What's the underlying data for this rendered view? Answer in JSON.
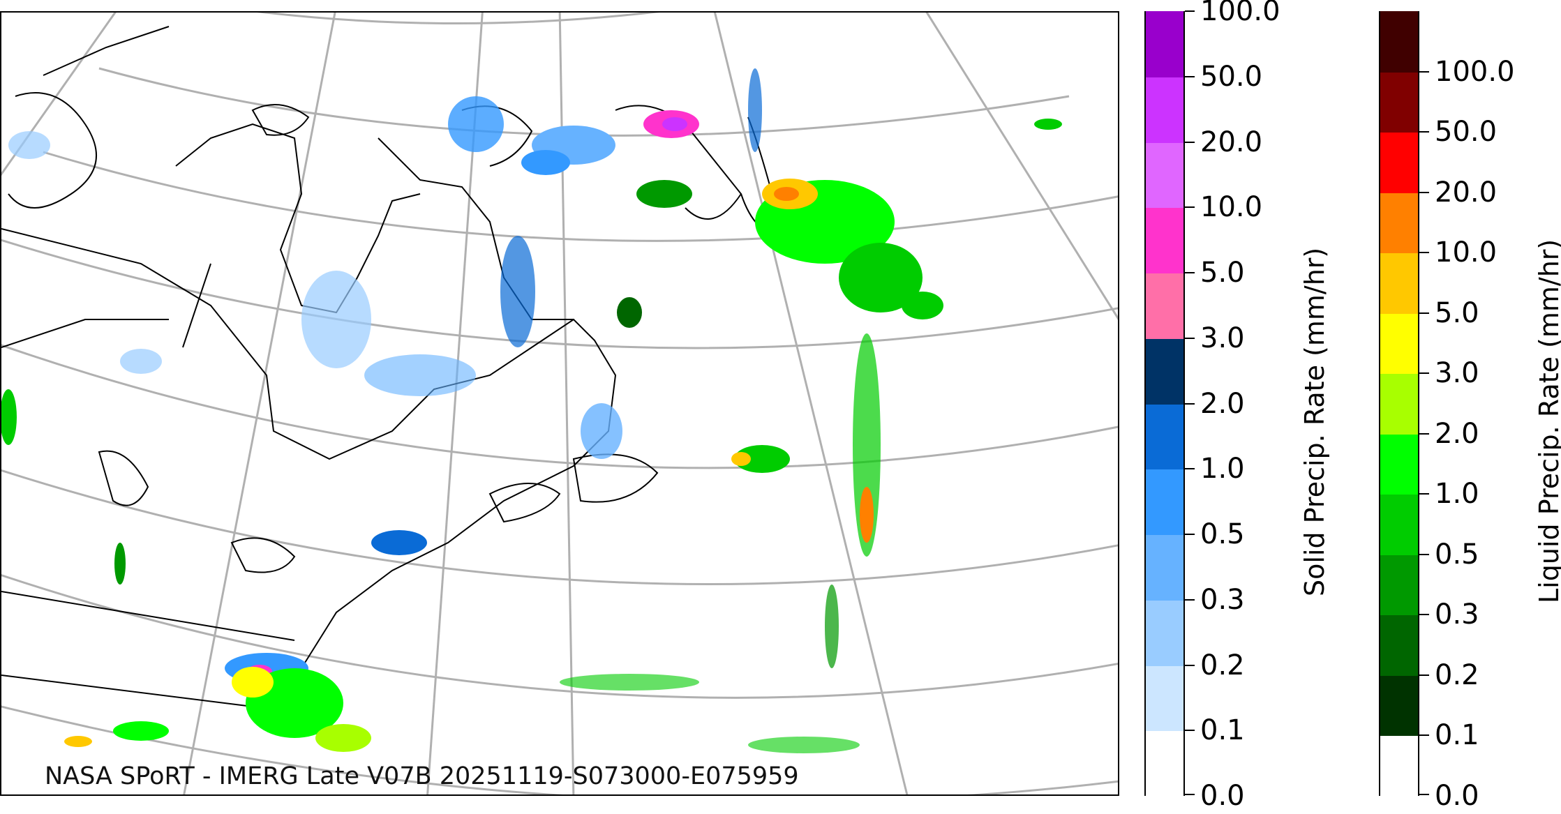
{
  "map": {
    "credit": "NASA SPoRT - IMERG Late V07B 20251119-S073000-E075959",
    "coastline_color": "#000000",
    "graticule_color": "#b0b0b0"
  },
  "solid_scale": {
    "title": "Solid Precip. Rate (mm/hr)",
    "levels": [
      "0.0",
      "0.1",
      "0.2",
      "0.3",
      "0.5",
      "1.0",
      "2.0",
      "3.0",
      "5.0",
      "10.0",
      "20.0",
      "50.0",
      "100.0"
    ],
    "colors": [
      "#ffffff",
      "#cce6ff",
      "#99ccff",
      "#66b2ff",
      "#3399ff",
      "#0a6bd6",
      "#003366",
      "#ff6fa8",
      "#ff33cc",
      "#e066ff",
      "#cc33ff",
      "#9900cc"
    ]
  },
  "liquid_scale": {
    "title": "Liquid Precip. Rate (mm/hr)",
    "levels": [
      "0.0",
      "0.1",
      "0.2",
      "0.3",
      "0.5",
      "1.0",
      "2.0",
      "3.0",
      "5.0",
      "10.0",
      "20.0",
      "50.0",
      "100.0"
    ],
    "colors": [
      "#ffffff",
      "#003300",
      "#006600",
      "#009900",
      "#00cc00",
      "#00ff00",
      "#a8ff00",
      "#ffff00",
      "#ffc800",
      "#ff8000",
      "#ff0000",
      "#800000",
      "#400000"
    ]
  }
}
